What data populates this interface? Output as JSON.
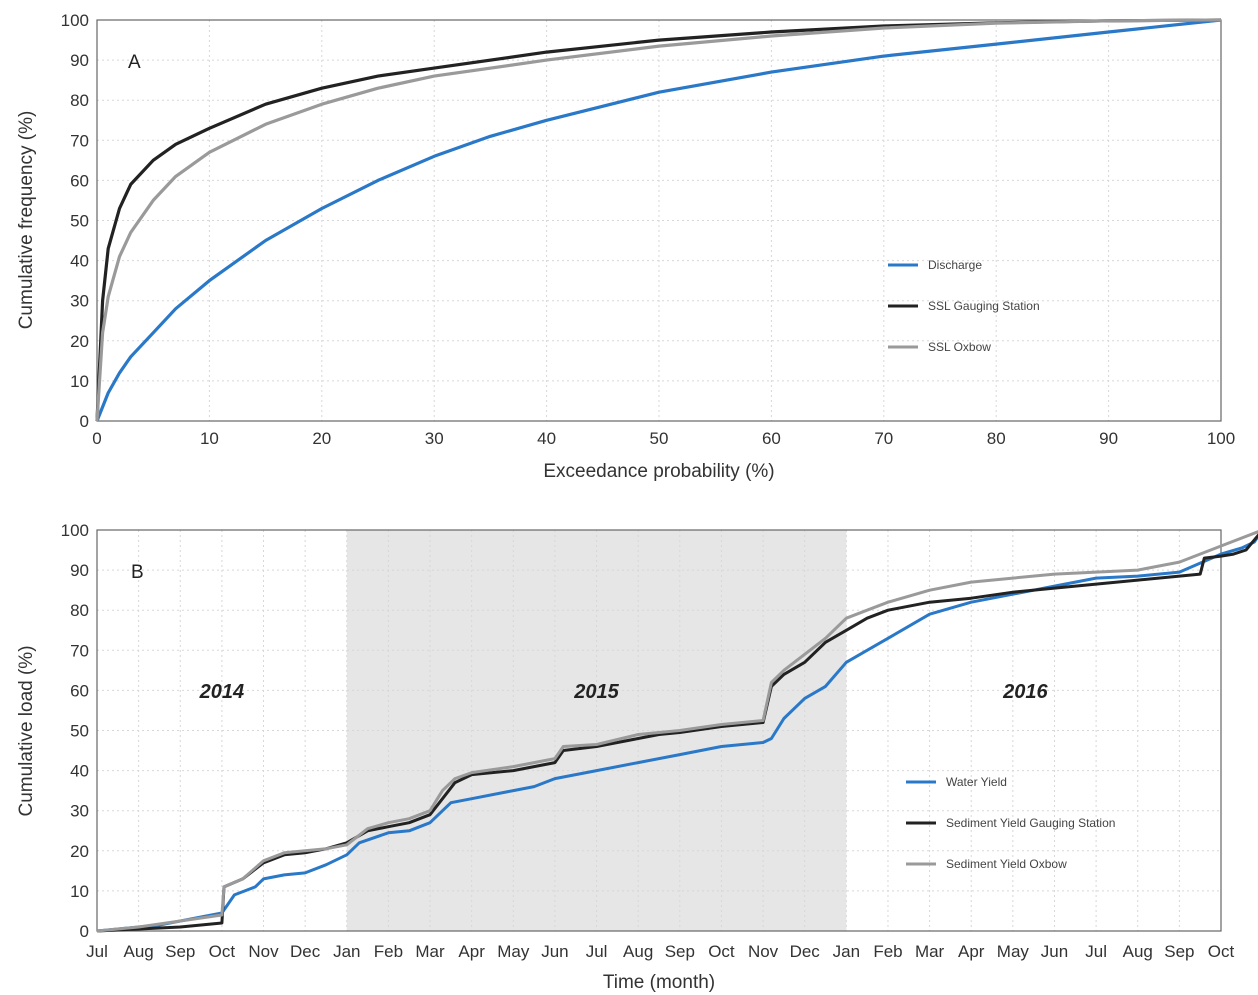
{
  "chart_data": [
    {
      "type": "line",
      "panel_label": "A",
      "xlabel": "Exceedance probability (%)",
      "ylabel": "Cumulative frequency (%)",
      "xlim": [
        0,
        100
      ],
      "ylim": [
        0,
        100
      ],
      "xticks": [
        0,
        10,
        20,
        30,
        40,
        50,
        60,
        70,
        80,
        90,
        100
      ],
      "yticks": [
        0,
        10,
        20,
        30,
        40,
        50,
        60,
        70,
        80,
        90,
        100
      ],
      "grid": true,
      "legend_position": "right-center",
      "series": [
        {
          "name": "Discharge",
          "color": "#2a78c8",
          "x": [
            0,
            1,
            2,
            3,
            5,
            7,
            10,
            15,
            20,
            25,
            30,
            35,
            40,
            50,
            60,
            70,
            80,
            90,
            100
          ],
          "y": [
            0,
            7,
            12,
            16,
            22,
            28,
            35,
            45,
            53,
            60,
            66,
            71,
            75,
            82,
            87,
            91,
            94,
            97,
            100
          ]
        },
        {
          "name": "SSL Gauging Station",
          "color": "#222222",
          "x": [
            0,
            0.5,
            1,
            2,
            3,
            5,
            7,
            10,
            15,
            20,
            25,
            30,
            40,
            50,
            60,
            70,
            80,
            90,
            100
          ],
          "y": [
            0,
            30,
            43,
            53,
            59,
            65,
            69,
            73,
            79,
            83,
            86,
            88,
            92,
            95,
            97,
            98.5,
            99.3,
            99.8,
            100
          ]
        },
        {
          "name": "SSL Oxbow",
          "color": "#9a9a9a",
          "x": [
            0,
            0.5,
            1,
            2,
            3,
            5,
            7,
            10,
            15,
            20,
            25,
            30,
            40,
            50,
            60,
            70,
            80,
            90,
            100
          ],
          "y": [
            0,
            22,
            31,
            41,
            47,
            55,
            61,
            67,
            74,
            79,
            83,
            86,
            90,
            93.5,
            96,
            98,
            99.2,
            99.8,
            100
          ]
        }
      ]
    },
    {
      "type": "line",
      "panel_label": "B",
      "xlabel": "Time (month)",
      "ylabel": "Cumulative load (%)",
      "categories": [
        "Jul",
        "Aug",
        "Sep",
        "Oct",
        "Nov",
        "Dec",
        "Jan",
        "Feb",
        "Mar",
        "Apr",
        "May",
        "Jun",
        "Jul",
        "Aug",
        "Sep",
        "Oct",
        "Nov",
        "Dec",
        "Jan",
        "Feb",
        "Mar",
        "Apr",
        "May",
        "Jun",
        "Jul",
        "Aug",
        "Sep",
        "Oct"
      ],
      "tick_labels": [
        "Jul",
        "Aug",
        "Sep",
        "Oct",
        "Nov",
        "Dec",
        "Jan",
        "Feb",
        "Mar",
        "Apr",
        "May",
        "Jun",
        "Jul",
        "Aug",
        "Sep",
        "Oct",
        "Nov",
        "Dec",
        "Jan",
        "Feb",
        "Mar",
        "Apr",
        "May",
        "Jun",
        "Jul",
        "Aug",
        "Sep",
        "Oct"
      ],
      "ylim": [
        0,
        100
      ],
      "yticks": [
        0,
        10,
        20,
        30,
        40,
        50,
        60,
        70,
        80,
        90,
        100
      ],
      "grid": true,
      "legend_position": "right-center",
      "shaded_year_span": [
        6,
        18
      ],
      "year_labels": [
        {
          "text": "2014",
          "x": 3
        },
        {
          "text": "2015",
          "x": 12
        },
        {
          "text": "2016",
          "x": 22.3
        }
      ],
      "series": [
        {
          "name": "Water Yield",
          "color": "#2a78c8",
          "x": [
            0,
            1,
            1.5,
            2,
            3,
            3.3,
            3.8,
            4,
            4.5,
            5,
            5.5,
            6,
            6.3,
            7,
            7.5,
            8,
            8.5,
            9,
            10,
            10.5,
            11,
            12,
            13,
            14,
            15,
            16,
            16.2,
            16.5,
            17,
            17.5,
            18,
            18.5,
            19,
            20,
            21,
            22,
            23,
            24,
            25,
            26,
            27,
            27.5,
            27.8,
            28
          ],
          "y": [
            0,
            1,
            1.5,
            2.5,
            4.5,
            9,
            11,
            13,
            14,
            14.5,
            16.5,
            19,
            22,
            24.5,
            25,
            27,
            32,
            33,
            35,
            36,
            38,
            40,
            42,
            44,
            46,
            47,
            48,
            53,
            58,
            61,
            67,
            70,
            73,
            79,
            82,
            84,
            86,
            88,
            88.5,
            89.5,
            94,
            95.5,
            97,
            100
          ]
        },
        {
          "name": "Sediment Yield Gauging Station",
          "color": "#222222",
          "x": [
            0,
            1,
            2,
            3,
            3.05,
            3.5,
            4,
            4.5,
            5,
            5.5,
            6,
            6.5,
            7,
            7.5,
            8,
            8.3,
            8.6,
            9,
            10,
            10.5,
            11,
            11.2,
            12,
            13,
            13.5,
            14,
            15,
            16,
            16.2,
            16.5,
            17,
            17.5,
            18,
            18.5,
            19,
            20,
            21,
            22,
            23,
            24,
            25,
            26,
            26.5,
            26.6,
            27,
            27.3,
            27.6,
            28
          ],
          "y": [
            0,
            0.5,
            1,
            2,
            11,
            13,
            17,
            19,
            19.5,
            20.5,
            22,
            25,
            26,
            27,
            29,
            33,
            37,
            39,
            40,
            41,
            42,
            45,
            46,
            48,
            49,
            49.5,
            51,
            52,
            61,
            64,
            67,
            72,
            75,
            78,
            80,
            82,
            83,
            84.5,
            85.5,
            86.5,
            87.5,
            88.5,
            89,
            93,
            93.5,
            94,
            95,
            100
          ]
        },
        {
          "name": "Sediment Yield Oxbow",
          "color": "#9a9a9a",
          "x": [
            0,
            1,
            2,
            3,
            3.05,
            3.5,
            4,
            4.5,
            5,
            5.5,
            6,
            6.5,
            7,
            7.5,
            8,
            8.3,
            8.6,
            9,
            10,
            10.5,
            11,
            11.2,
            12,
            13,
            14,
            15,
            16,
            16.2,
            16.5,
            17,
            17.5,
            18,
            18.5,
            19,
            20,
            21,
            22,
            23,
            24,
            25,
            26,
            27,
            28
          ],
          "y": [
            0,
            1,
            2.5,
            4,
            11,
            13,
            17.5,
            19.5,
            20,
            20.5,
            21.5,
            25.5,
            27,
            28,
            30,
            35,
            38,
            39.5,
            41,
            42,
            43,
            46,
            46.5,
            49,
            50,
            51.5,
            52.5,
            62,
            65,
            69,
            73,
            78,
            80,
            82,
            85,
            87,
            88,
            89,
            89.5,
            90,
            92,
            96,
            100
          ]
        }
      ]
    }
  ],
  "legendA": {
    "item0": "Discharge",
    "item1": "SSL Gauging Station",
    "item2": "SSL Oxbow"
  },
  "legendB": {
    "item0": "Water Yield",
    "item1": "Sediment Yield Gauging Station",
    "item2": "Sediment Yield Oxbow"
  },
  "colors": {
    "blue": "#2a78c8",
    "black": "#222222",
    "gray": "#9a9a9a",
    "shade": "#e6e6e6"
  }
}
